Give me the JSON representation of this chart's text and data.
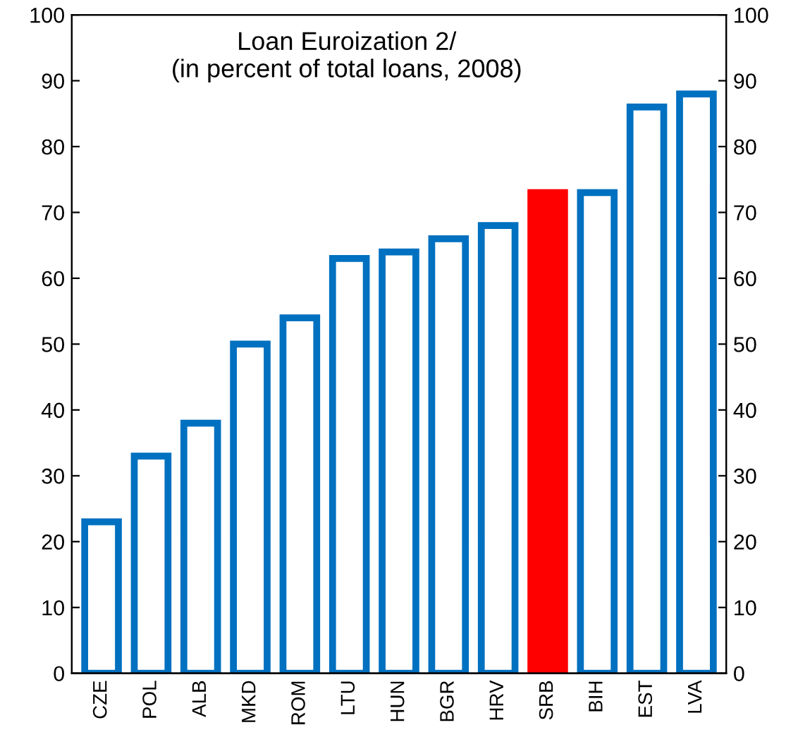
{
  "chart_data": {
    "type": "bar",
    "title": "Loan Euroization 2/\n(in percent of total loans, 2008)",
    "categories": [
      "CZE",
      "POL",
      "ALB",
      "MKD",
      "ROM",
      "LTU",
      "HUN",
      "BGR",
      "HRV",
      "SRB",
      "BIH",
      "EST",
      "LVA"
    ],
    "values": [
      23,
      33,
      38,
      50,
      54,
      63,
      64,
      66,
      68,
      73,
      73,
      86,
      88
    ],
    "colors": [
      "#0070c0",
      "#0070c0",
      "#0070c0",
      "#0070c0",
      "#0070c0",
      "#0070c0",
      "#0070c0",
      "#0070c0",
      "#0070c0",
      "#ff0000",
      "#0070c0",
      "#0070c0",
      "#0070c0"
    ],
    "ylim": [
      0,
      100
    ],
    "yticks": [
      0,
      10,
      20,
      30,
      40,
      50,
      60,
      70,
      80,
      90,
      100
    ],
    "y2lim": [
      0,
      100
    ],
    "y2ticks": [
      0,
      10,
      20,
      30,
      40,
      50,
      60,
      70,
      80,
      90,
      100
    ],
    "grid": false
  }
}
